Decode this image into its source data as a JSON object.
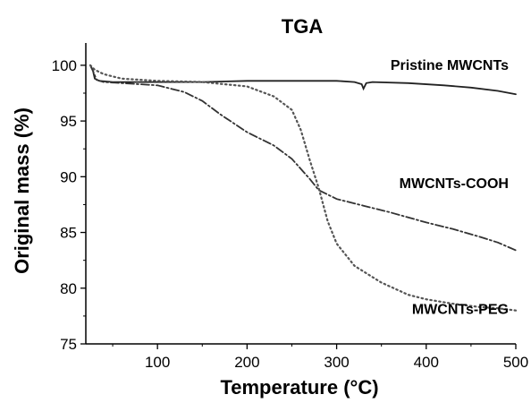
{
  "chart_data": {
    "type": "line",
    "title": "TGA",
    "xlabel": "Temperature (°C)",
    "ylabel": "Original mass (%)",
    "xlim": [
      20,
      500
    ],
    "ylim": [
      75,
      102
    ],
    "xticks": [
      100,
      200,
      300,
      400,
      500
    ],
    "yticks": [
      75,
      80,
      85,
      90,
      95,
      100
    ],
    "grid": false,
    "legend": "inline labels",
    "series": [
      {
        "name": "Pristine MWCNTs",
        "style": "solid",
        "color": "#222222",
        "x": [
          25,
          28,
          30,
          35,
          50,
          100,
          150,
          200,
          250,
          300,
          320,
          328,
          330,
          333,
          340,
          380,
          420,
          450,
          480,
          500
        ],
        "y": [
          100.0,
          99.5,
          98.8,
          98.6,
          98.5,
          98.5,
          98.5,
          98.6,
          98.6,
          98.6,
          98.5,
          98.3,
          97.9,
          98.4,
          98.5,
          98.4,
          98.2,
          98.0,
          97.7,
          97.4
        ]
      },
      {
        "name": "MWCNTs-COOH",
        "style": "dashdot",
        "color": "#333333",
        "x": [
          25,
          28,
          32,
          40,
          60,
          100,
          130,
          150,
          170,
          200,
          230,
          250,
          270,
          280,
          300,
          330,
          360,
          400,
          430,
          460,
          480,
          500
        ],
        "y": [
          100.0,
          99.5,
          98.7,
          98.5,
          98.4,
          98.2,
          97.6,
          96.8,
          95.6,
          94.0,
          92.8,
          91.6,
          89.8,
          88.8,
          88.0,
          87.4,
          86.8,
          85.9,
          85.3,
          84.6,
          84.1,
          83.4
        ]
      },
      {
        "name": "MWCNTs-PEG",
        "style": "dotted",
        "color": "#555555",
        "x": [
          25,
          30,
          40,
          60,
          100,
          150,
          200,
          230,
          250,
          260,
          270,
          280,
          290,
          300,
          320,
          350,
          380,
          400,
          430,
          460,
          480,
          500
        ],
        "y": [
          100.0,
          99.6,
          99.2,
          98.8,
          98.6,
          98.5,
          98.1,
          97.2,
          96.0,
          94.2,
          91.5,
          89.0,
          86.0,
          84.0,
          82.0,
          80.5,
          79.4,
          79.0,
          78.6,
          78.3,
          78.2,
          78.0
        ]
      }
    ],
    "annotations": [
      {
        "text": "Pristine MWCNTs",
        "series": "Pristine MWCNTs",
        "anchor_x": 492,
        "anchor_y": 99.6
      },
      {
        "text": "MWCNTs-COOH",
        "series": "MWCNTs-COOH",
        "anchor_x": 492,
        "anchor_y": 89.0
      },
      {
        "text": "MWCNTs-PEG",
        "series": "MWCNTs-PEG",
        "anchor_x": 492,
        "anchor_y": 77.7
      }
    ]
  }
}
